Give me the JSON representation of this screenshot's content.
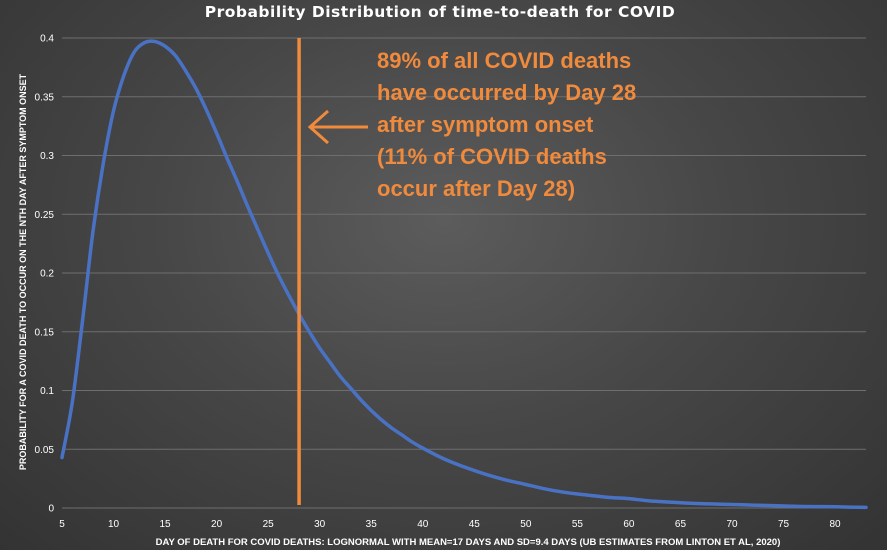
{
  "chart_data": {
    "type": "line",
    "title": "Probability Distribution of time-to-death for COVID",
    "xlabel": "DAY OF DEATH FOR COVID DEATHS: LOGNORMAL WITH MEAN=17 DAYS AND SD=9.4 DAYS (UB ESTIMATES FROM LINTON ET AL, 2020)",
    "ylabel": "PROBABILITY FOR A COVID DEATH TO OCCUR ON THE NTH DAY AFTER SYMPTOM ONSET",
    "xlim": [
      5,
      83
    ],
    "ylim": [
      0,
      0.4
    ],
    "x_ticks": [
      5,
      10,
      15,
      20,
      25,
      30,
      35,
      40,
      45,
      50,
      55,
      60,
      65,
      70,
      75,
      80
    ],
    "y_ticks": [
      0,
      0.05,
      0.1,
      0.15,
      0.2,
      0.25,
      0.3,
      0.35,
      0.4
    ],
    "y_tick_labels": [
      "0",
      "0.05",
      "0.1",
      "0.15",
      "0.2",
      "0.25",
      "0.3",
      "0.35",
      "0.4"
    ],
    "grid": true,
    "series": [
      {
        "color": "#4a72c4",
        "x": [
          5,
          6,
          7,
          8,
          9,
          10,
          11,
          12,
          13,
          14,
          15,
          16,
          17,
          18,
          19,
          20,
          21,
          22,
          23,
          24,
          25,
          26,
          27,
          28,
          29,
          30,
          31,
          32,
          33,
          34,
          35,
          36,
          37,
          38,
          39,
          40,
          42,
          44,
          46,
          48,
          50,
          52,
          54,
          56,
          58,
          60,
          62,
          64,
          66,
          68,
          70,
          72,
          74,
          76,
          78,
          80,
          83
        ],
        "values": [
          0.043,
          0.09,
          0.16,
          0.235,
          0.293,
          0.338,
          0.368,
          0.388,
          0.396,
          0.397,
          0.393,
          0.385,
          0.372,
          0.357,
          0.339,
          0.319,
          0.298,
          0.278,
          0.257,
          0.237,
          0.217,
          0.198,
          0.181,
          0.165,
          0.15,
          0.136,
          0.124,
          0.112,
          0.102,
          0.092,
          0.083,
          0.075,
          0.068,
          0.062,
          0.056,
          0.051,
          0.042,
          0.035,
          0.029,
          0.024,
          0.02,
          0.016,
          0.013,
          0.011,
          0.009,
          0.008,
          0.006,
          0.005,
          0.004,
          0.0035,
          0.003,
          0.0025,
          0.002,
          0.0015,
          0.0012,
          0.001,
          0.0005
        ]
      }
    ],
    "marker_line": {
      "x": 28,
      "color": "#f08a3c"
    },
    "annotation": {
      "lines": [
        "89% of all COVID deaths",
        "have occurred by Day 28",
        "after symptom onset",
        "(11% of COVID deaths",
        "occur after Day 28)"
      ],
      "color": "#f08a3c"
    }
  }
}
